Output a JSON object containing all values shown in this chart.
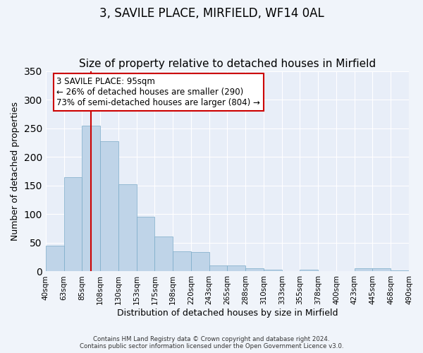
{
  "title": "3, SAVILE PLACE, MIRFIELD, WF14 0AL",
  "subtitle": "Size of property relative to detached houses in Mirfield",
  "xlabel": "Distribution of detached houses by size in Mirfield",
  "ylabel": "Number of detached properties",
  "bar_labels": [
    "40sqm",
    "63sqm",
    "85sqm",
    "108sqm",
    "130sqm",
    "153sqm",
    "175sqm",
    "198sqm",
    "220sqm",
    "243sqm",
    "265sqm",
    "288sqm",
    "310sqm",
    "333sqm",
    "355sqm",
    "378sqm",
    "400sqm",
    "423sqm",
    "445sqm",
    "468sqm",
    "490sqm"
  ],
  "bar_values": [
    45,
    164,
    255,
    228,
    152,
    96,
    61,
    35,
    34,
    10,
    10,
    5,
    3,
    0,
    3,
    0,
    0,
    5,
    5,
    2
  ],
  "bar_color": "#bfd4e8",
  "bar_edge_color": "#7aaac8",
  "ylim": [
    0,
    350
  ],
  "yticks": [
    0,
    50,
    100,
    150,
    200,
    250,
    300,
    350
  ],
  "vline_x": 2.5,
  "vline_color": "#cc0000",
  "annotation_title": "3 SAVILE PLACE: 95sqm",
  "annotation_line1": "← 26% of detached houses are smaller (290)",
  "annotation_line2": "73% of semi-detached houses are larger (804) →",
  "annotation_box_color": "#ffffff",
  "annotation_box_edge": "#cc0000",
  "footer1": "Contains HM Land Registry data © Crown copyright and database right 2024.",
  "footer2": "Contains public sector information licensed under the Open Government Licence v3.0.",
  "background_color": "#f0f4fa",
  "plot_background": "#e8eef8",
  "grid_color": "#ffffff",
  "title_fontsize": 12,
  "subtitle_fontsize": 11
}
